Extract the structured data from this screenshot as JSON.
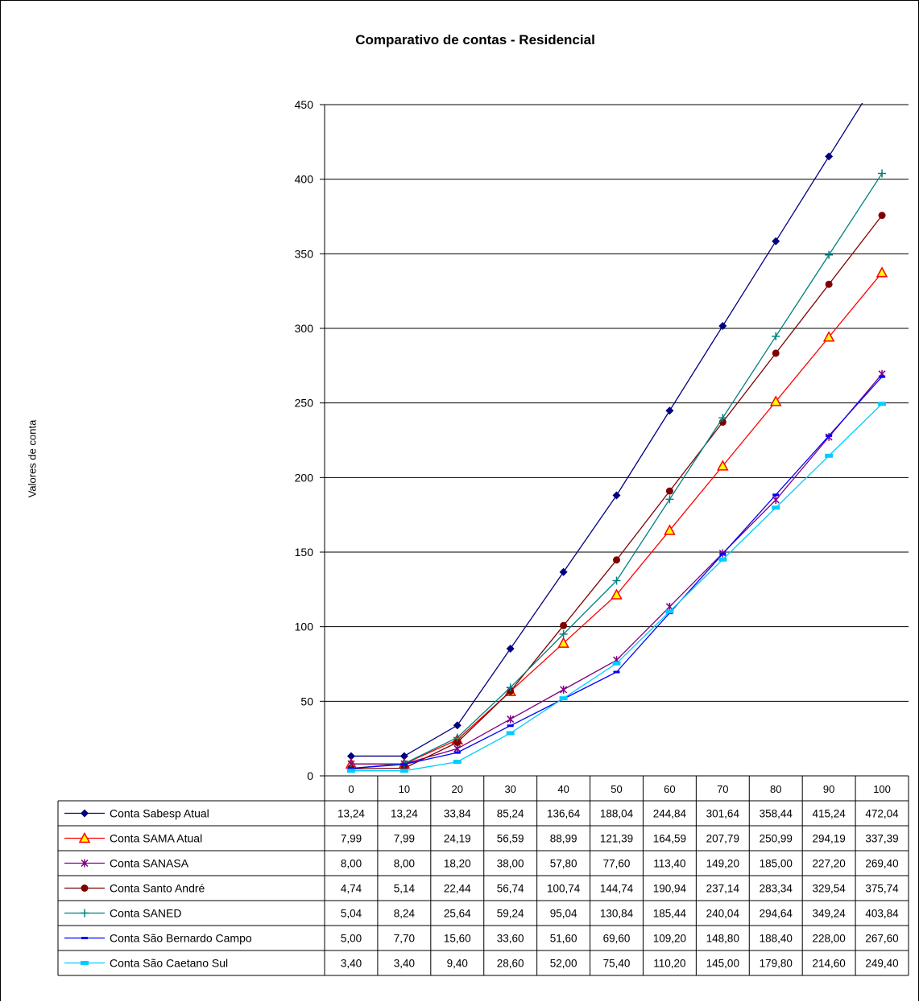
{
  "chart_data": {
    "type": "line",
    "title": "Comparativo de contas - Residencial",
    "xlabel": "",
    "ylabel": "Valores de conta",
    "ylim": [
      0,
      450
    ],
    "y_ticks": [
      "0",
      "50",
      "100",
      "150",
      "200",
      "250",
      "300",
      "350",
      "400",
      "450"
    ],
    "grid": true,
    "legend": "data-table",
    "categories": [
      "0",
      "10",
      "20",
      "30",
      "40",
      "50",
      "60",
      "70",
      "80",
      "90",
      "100"
    ],
    "series": [
      {
        "name": "Conta Sabesp Atual",
        "color": "#000080",
        "marker": "diamond",
        "values": [
          13.24,
          13.24,
          33.84,
          85.24,
          136.64,
          188.04,
          244.84,
          301.64,
          358.44,
          415.24,
          472.04
        ],
        "labels": [
          "13,24",
          "13,24",
          "33,84",
          "85,24",
          "136,64",
          "188,04",
          "244,84",
          "301,64",
          "358,44",
          "415,24",
          "472,04"
        ]
      },
      {
        "name": "Conta SAMA Atual",
        "color": "#ff0000",
        "marker": "triangle",
        "values": [
          7.99,
          7.99,
          24.19,
          56.59,
          88.99,
          121.39,
          164.59,
          207.79,
          250.99,
          294.19,
          337.39
        ],
        "labels": [
          "7,99",
          "7,99",
          "24,19",
          "56,59",
          "88,99",
          "121,39",
          "164,59",
          "207,79",
          "250,99",
          "294,19",
          "337,39"
        ]
      },
      {
        "name": "Conta SANASA",
        "color": "#800080",
        "marker": "star",
        "values": [
          8.0,
          8.0,
          18.2,
          38.0,
          57.8,
          77.6,
          113.4,
          149.2,
          185.0,
          227.2,
          269.4
        ],
        "labels": [
          "8,00",
          "8,00",
          "18,20",
          "38,00",
          "57,80",
          "77,60",
          "113,40",
          "149,20",
          "185,00",
          "227,20",
          "269,40"
        ]
      },
      {
        "name": "Conta Santo André",
        "color": "#800000",
        "marker": "circle",
        "values": [
          4.74,
          5.14,
          22.44,
          56.74,
          100.74,
          144.74,
          190.94,
          237.14,
          283.34,
          329.54,
          375.74
        ],
        "labels": [
          "4,74",
          "5,14",
          "22,44",
          "56,74",
          "100,74",
          "144,74",
          "190,94",
          "237,14",
          "283,34",
          "329,54",
          "375,74"
        ]
      },
      {
        "name": "Conta SANED",
        "color": "#008080",
        "marker": "plus",
        "values": [
          5.04,
          8.24,
          25.64,
          59.24,
          95.04,
          130.84,
          185.44,
          240.04,
          294.64,
          349.24,
          403.84
        ],
        "labels": [
          "5,04",
          "8,24",
          "25,64",
          "59,24",
          "95,04",
          "130,84",
          "185,44",
          "240,04",
          "294,64",
          "349,24",
          "403,84"
        ]
      },
      {
        "name": "Conta São Bernardo Campo",
        "color": "#0000ff",
        "marker": "dash",
        "values": [
          5.0,
          7.7,
          15.6,
          33.6,
          51.6,
          69.6,
          109.2,
          148.8,
          188.4,
          228.0,
          267.6
        ],
        "labels": [
          "5,00",
          "7,70",
          "15,60",
          "33,60",
          "51,60",
          "69,60",
          "109,20",
          "148,80",
          "188,40",
          "228,00",
          "267,60"
        ]
      },
      {
        "name": "Conta São Caetano Sul",
        "color": "#00ccff",
        "marker": "square",
        "values": [
          3.4,
          3.4,
          9.4,
          28.6,
          52.0,
          75.4,
          110.2,
          145.0,
          179.8,
          214.6,
          249.4
        ],
        "labels": [
          "3,40",
          "3,40",
          "9,40",
          "28,60",
          "52,00",
          "75,40",
          "110,20",
          "145,00",
          "179,80",
          "214,60",
          "249,40"
        ]
      }
    ]
  }
}
